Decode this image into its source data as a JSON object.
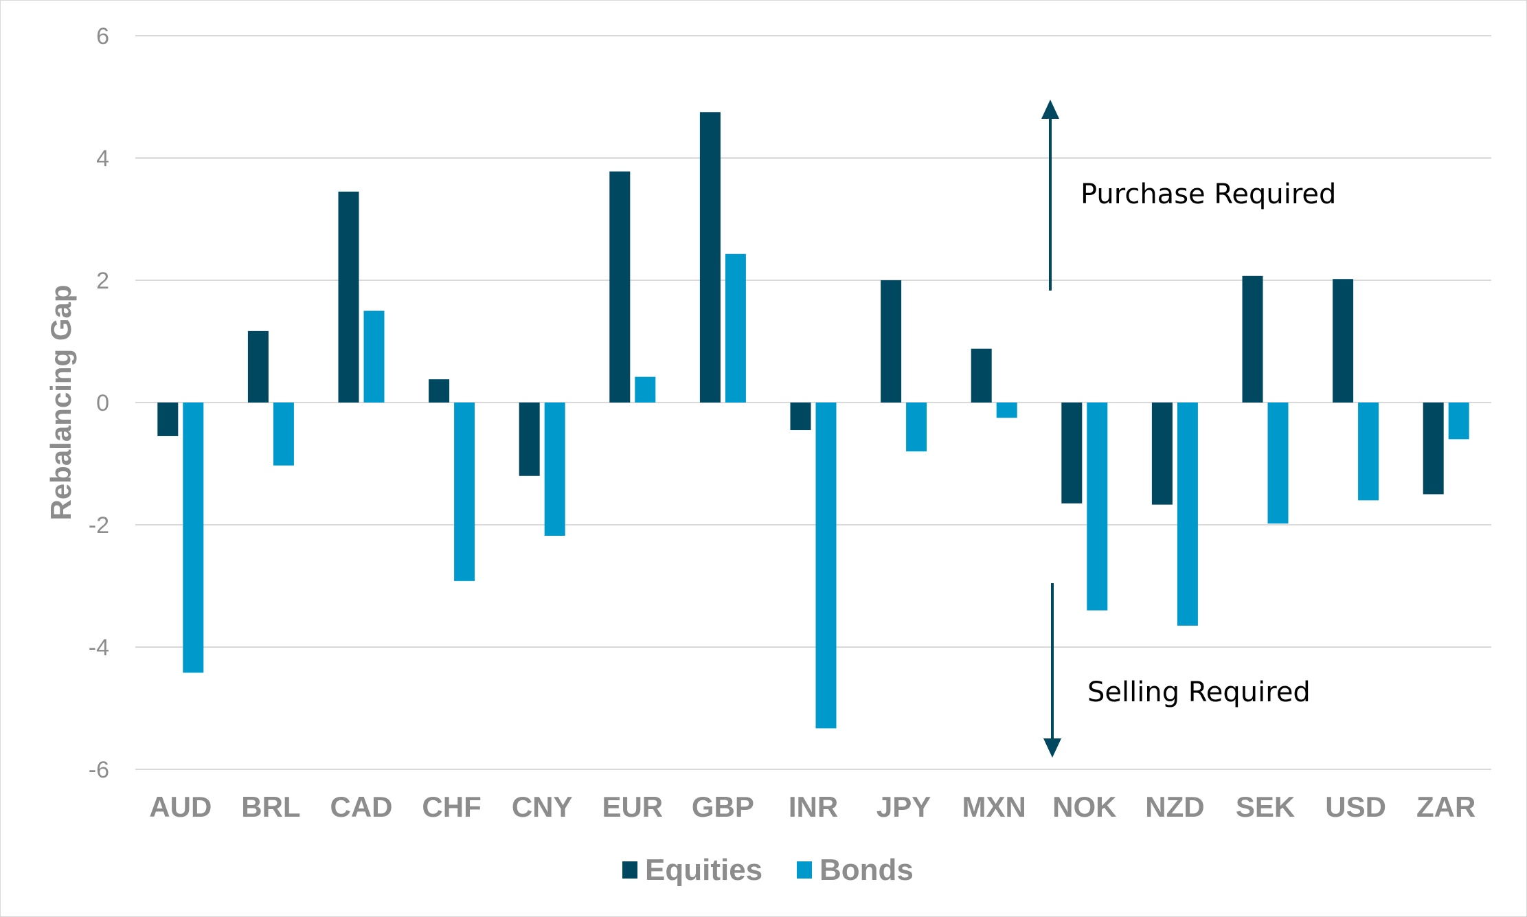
{
  "chart_data": {
    "type": "bar",
    "title": "",
    "xlabel": "",
    "ylabel": "Rebalancing Gap",
    "ylim": [
      -6,
      6
    ],
    "yticks": [
      6,
      4,
      2,
      0,
      -2,
      -4,
      -6
    ],
    "grid": true,
    "legend_position": "bottom",
    "categories": [
      "AUD",
      "BRL",
      "CAD",
      "CHF",
      "CNY",
      "EUR",
      "GBP",
      "INR",
      "JPY",
      "MXN",
      "NOK",
      "NZD",
      "SEK",
      "USD",
      "ZAR"
    ],
    "series": [
      {
        "name": "Equities",
        "color": "#004760",
        "values": [
          -0.55,
          1.17,
          3.45,
          0.38,
          -1.2,
          3.78,
          4.75,
          -0.45,
          2.0,
          0.88,
          -1.65,
          -1.67,
          2.07,
          2.02,
          -1.5
        ]
      },
      {
        "name": "Bonds",
        "color": "#0099cc",
        "values": [
          -4.42,
          -1.03,
          1.5,
          -2.92,
          -2.18,
          0.42,
          2.43,
          -5.33,
          -0.8,
          -0.25,
          -3.4,
          -3.65,
          -1.98,
          -1.6,
          -0.6
        ]
      }
    ],
    "annotations": [
      {
        "text": "Purchase Required",
        "arrow": "up",
        "color": "#004760"
      },
      {
        "text": "Selling Required",
        "arrow": "down",
        "color": "#004760"
      }
    ]
  }
}
